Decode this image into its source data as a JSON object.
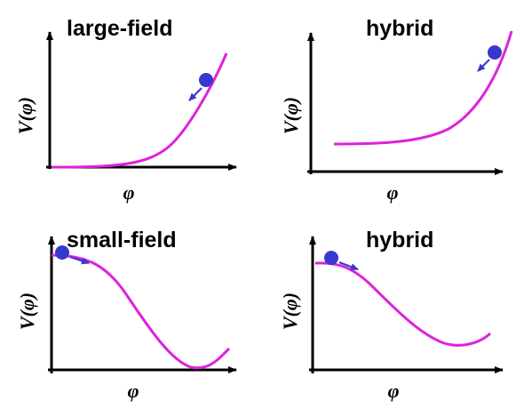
{
  "colors": {
    "axis": "#000000",
    "curve": "#dd22dd",
    "ball": "#3838cc",
    "arrow": "#3838cc"
  },
  "panels": [
    {
      "title": "large-field",
      "xlabel": "φ",
      "ylabel": "V(φ)"
    },
    {
      "title": "hybrid",
      "xlabel": "φ",
      "ylabel": "V(φ)"
    },
    {
      "title": "small-field",
      "xlabel": "φ",
      "ylabel": "V(φ)"
    },
    {
      "title": "hybrid",
      "xlabel": "φ",
      "ylabel": "V(φ)"
    }
  ]
}
